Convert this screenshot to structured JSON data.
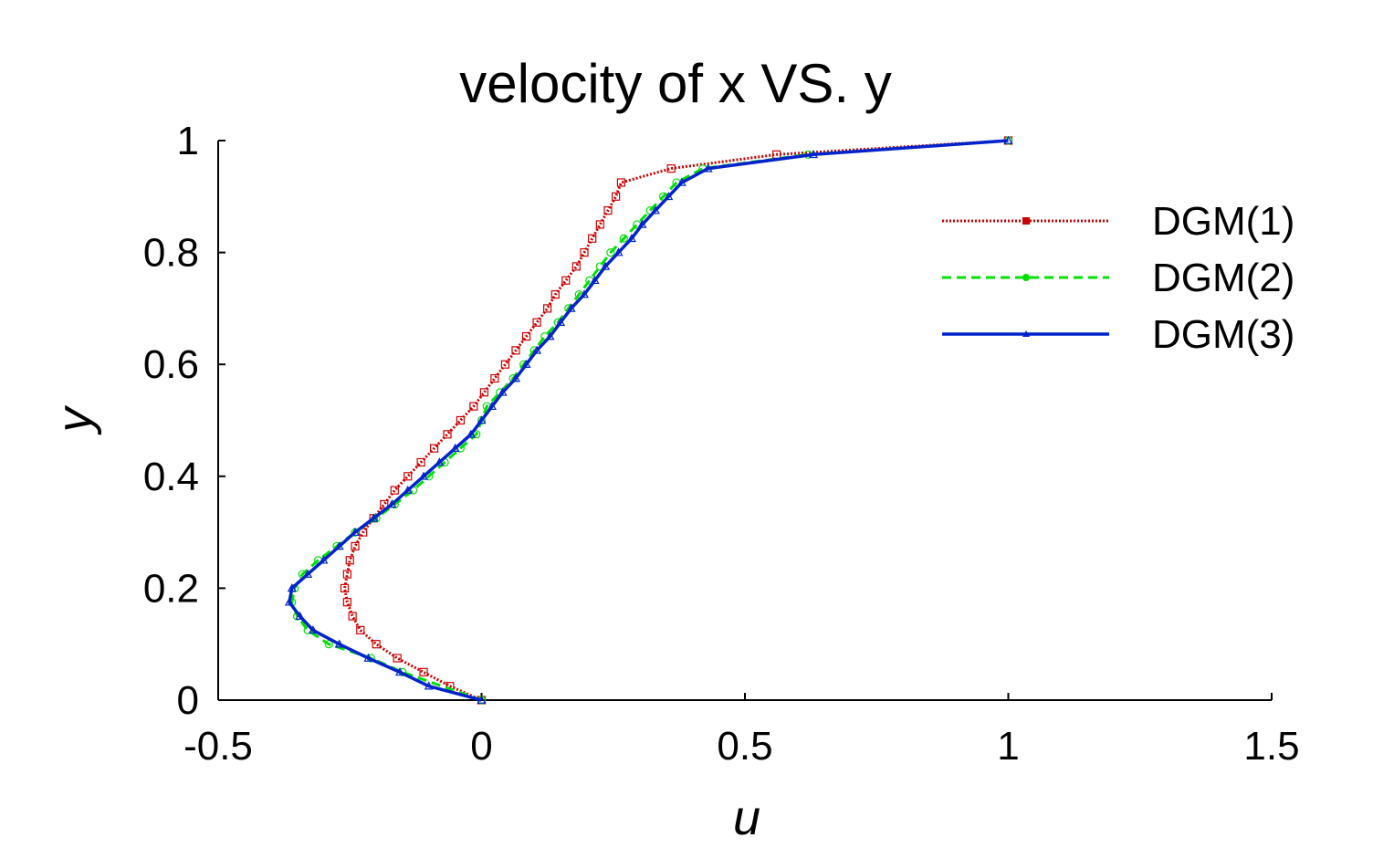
{
  "chart_data": {
    "type": "line",
    "title": "velocity of x VS. y",
    "xlabel": "u",
    "ylabel": "y",
    "xlim": [
      -0.5,
      1.5
    ],
    "ylim": [
      0,
      1
    ],
    "xticks": [
      "-0.5",
      "0",
      "0.5",
      "1",
      "1.5"
    ],
    "yticks": [
      "0",
      "0.2",
      "0.4",
      "0.6",
      "0.8",
      "1"
    ],
    "grid": false,
    "legend_position": "top-right",
    "series": [
      {
        "name": "DGM(1)",
        "color": "#cc0000",
        "style": "dotted",
        "marker": "square",
        "points": [
          [
            0,
            0
          ],
          [
            -0.06,
            0.025
          ],
          [
            -0.11,
            0.05
          ],
          [
            -0.16,
            0.075
          ],
          [
            -0.2,
            0.1
          ],
          [
            -0.23,
            0.125
          ],
          [
            -0.245,
            0.15
          ],
          [
            -0.255,
            0.175
          ],
          [
            -0.26,
            0.2
          ],
          [
            -0.255,
            0.225
          ],
          [
            -0.25,
            0.25
          ],
          [
            -0.24,
            0.275
          ],
          [
            -0.225,
            0.3
          ],
          [
            -0.205,
            0.325
          ],
          [
            -0.185,
            0.35
          ],
          [
            -0.165,
            0.375
          ],
          [
            -0.14,
            0.4
          ],
          [
            -0.115,
            0.425
          ],
          [
            -0.09,
            0.45
          ],
          [
            -0.065,
            0.475
          ],
          [
            -0.04,
            0.5
          ],
          [
            -0.015,
            0.525
          ],
          [
            0.005,
            0.55
          ],
          [
            0.025,
            0.575
          ],
          [
            0.045,
            0.6
          ],
          [
            0.065,
            0.625
          ],
          [
            0.085,
            0.65
          ],
          [
            0.105,
            0.675
          ],
          [
            0.125,
            0.7
          ],
          [
            0.14,
            0.725
          ],
          [
            0.16,
            0.75
          ],
          [
            0.18,
            0.775
          ],
          [
            0.195,
            0.8
          ],
          [
            0.21,
            0.825
          ],
          [
            0.225,
            0.85
          ],
          [
            0.24,
            0.875
          ],
          [
            0.255,
            0.9
          ],
          [
            0.265,
            0.925
          ],
          [
            0.36,
            0.95
          ],
          [
            0.56,
            0.975
          ],
          [
            1.0,
            1.0
          ]
        ]
      },
      {
        "name": "DGM(2)",
        "color": "#00e000",
        "style": "dashed",
        "marker": "circle",
        "points": [
          [
            0,
            0
          ],
          [
            -0.15,
            0.05
          ],
          [
            -0.21,
            0.075
          ],
          [
            -0.29,
            0.1
          ],
          [
            -0.33,
            0.125
          ],
          [
            -0.35,
            0.15
          ],
          [
            -0.36,
            0.175
          ],
          [
            -0.355,
            0.2
          ],
          [
            -0.34,
            0.225
          ],
          [
            -0.31,
            0.25
          ],
          [
            -0.275,
            0.275
          ],
          [
            -0.24,
            0.3
          ],
          [
            -0.2,
            0.325
          ],
          [
            -0.165,
            0.35
          ],
          [
            -0.13,
            0.375
          ],
          [
            -0.1,
            0.4
          ],
          [
            -0.07,
            0.425
          ],
          [
            -0.04,
            0.45
          ],
          [
            -0.01,
            0.475
          ],
          [
            0.0,
            0.5
          ],
          [
            0.01,
            0.525
          ],
          [
            0.035,
            0.55
          ],
          [
            0.06,
            0.575
          ],
          [
            0.08,
            0.6
          ],
          [
            0.1,
            0.625
          ],
          [
            0.12,
            0.65
          ],
          [
            0.145,
            0.675
          ],
          [
            0.165,
            0.7
          ],
          [
            0.185,
            0.725
          ],
          [
            0.205,
            0.75
          ],
          [
            0.225,
            0.775
          ],
          [
            0.245,
            0.8
          ],
          [
            0.27,
            0.825
          ],
          [
            0.295,
            0.85
          ],
          [
            0.32,
            0.875
          ],
          [
            0.345,
            0.9
          ],
          [
            0.37,
            0.925
          ],
          [
            0.42,
            0.95
          ],
          [
            0.62,
            0.975
          ],
          [
            1.0,
            1.0
          ]
        ]
      },
      {
        "name": "DGM(3)",
        "color": "#0022cc",
        "style": "solid",
        "marker": "triangle",
        "points": [
          [
            0,
            0
          ],
          [
            -0.1,
            0.025
          ],
          [
            -0.155,
            0.05
          ],
          [
            -0.215,
            0.075
          ],
          [
            -0.27,
            0.1
          ],
          [
            -0.32,
            0.125
          ],
          [
            -0.345,
            0.15
          ],
          [
            -0.365,
            0.175
          ],
          [
            -0.36,
            0.2
          ],
          [
            -0.33,
            0.225
          ],
          [
            -0.3,
            0.25
          ],
          [
            -0.27,
            0.275
          ],
          [
            -0.24,
            0.3
          ],
          [
            -0.205,
            0.325
          ],
          [
            -0.17,
            0.35
          ],
          [
            -0.14,
            0.375
          ],
          [
            -0.11,
            0.4
          ],
          [
            -0.08,
            0.425
          ],
          [
            -0.05,
            0.45
          ],
          [
            -0.02,
            0.475
          ],
          [
            0.0,
            0.5
          ],
          [
            0.02,
            0.525
          ],
          [
            0.04,
            0.55
          ],
          [
            0.065,
            0.575
          ],
          [
            0.085,
            0.6
          ],
          [
            0.105,
            0.625
          ],
          [
            0.13,
            0.65
          ],
          [
            0.15,
            0.675
          ],
          [
            0.17,
            0.7
          ],
          [
            0.195,
            0.725
          ],
          [
            0.215,
            0.75
          ],
          [
            0.235,
            0.775
          ],
          [
            0.26,
            0.8
          ],
          [
            0.285,
            0.825
          ],
          [
            0.305,
            0.85
          ],
          [
            0.33,
            0.875
          ],
          [
            0.355,
            0.9
          ],
          [
            0.38,
            0.925
          ],
          [
            0.43,
            0.95
          ],
          [
            0.63,
            0.975
          ],
          [
            1.0,
            1.0
          ]
        ]
      }
    ]
  }
}
